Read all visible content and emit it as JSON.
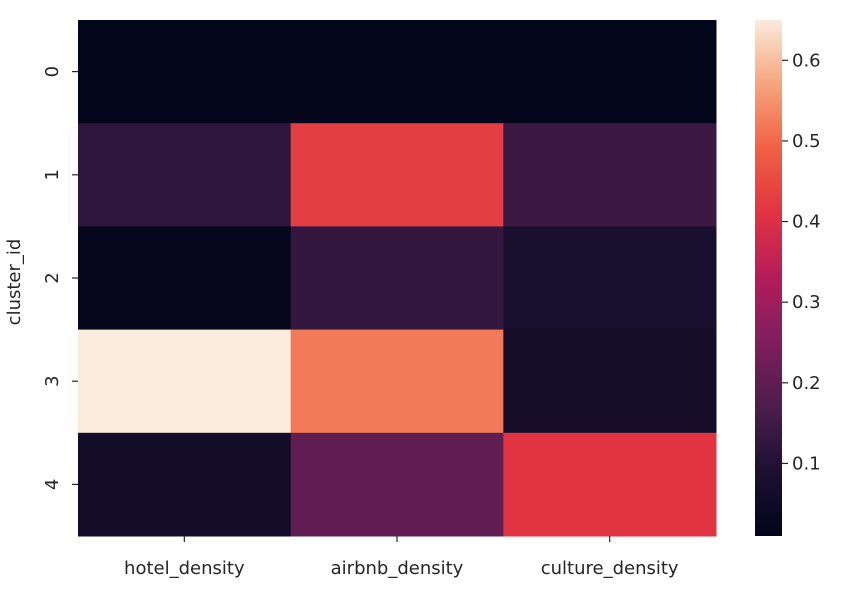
{
  "chart_data": {
    "type": "heatmap",
    "title": "",
    "xlabel": "",
    "ylabel": "cluster_id",
    "x_categories": [
      "hotel_density",
      "airbnb_density",
      "culture_density"
    ],
    "y_categories": [
      "0",
      "1",
      "2",
      "3",
      "4"
    ],
    "values": [
      [
        0.01,
        0.01,
        0.01
      ],
      [
        0.12,
        0.43,
        0.14
      ],
      [
        0.02,
        0.13,
        0.08
      ],
      [
        0.65,
        0.52,
        0.07
      ],
      [
        0.06,
        0.2,
        0.41
      ]
    ],
    "colorbar": {
      "colormap": "rocket",
      "vmin": 0.01,
      "vmax": 0.65,
      "ticks": [
        "0.1",
        "0.2",
        "0.3",
        "0.4",
        "0.5",
        "0.6"
      ]
    }
  }
}
